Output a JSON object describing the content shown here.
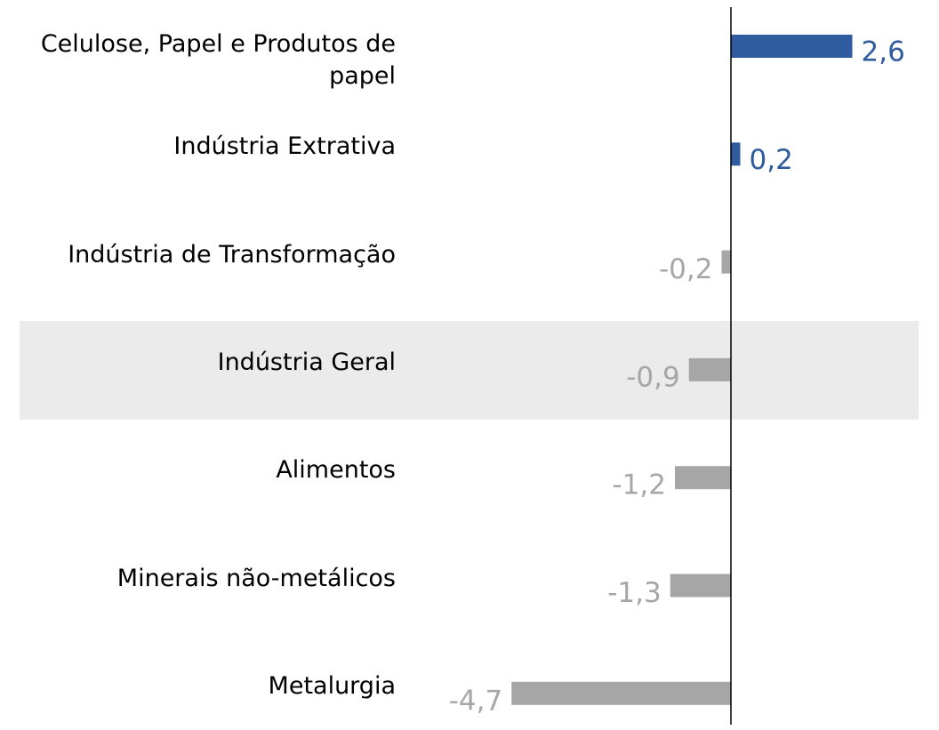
{
  "chart_data": {
    "type": "bar",
    "orientation": "horizontal",
    "categories": [
      "Celulose, Papel e Produtos de papel",
      "Indústria Extrativa",
      "Indústria de Transformação",
      "Indústria Geral",
      "Alimentos",
      "Minerais não-metálicos",
      "Metalurgia"
    ],
    "values": [
      2.6,
      0.2,
      -0.2,
      -0.9,
      -1.2,
      -1.3,
      -4.7
    ],
    "value_labels": [
      "2,6",
      "0,2",
      "-0,2",
      "-0,9",
      "-1,2",
      "-1,3",
      "-4,7"
    ],
    "positive_color": "#2e5c9e",
    "negative_color": "#a6a6a6",
    "highlight_color": "#ebebeb",
    "highlight_category": "Indústria Geral",
    "xlim": [
      -5,
      4
    ]
  }
}
